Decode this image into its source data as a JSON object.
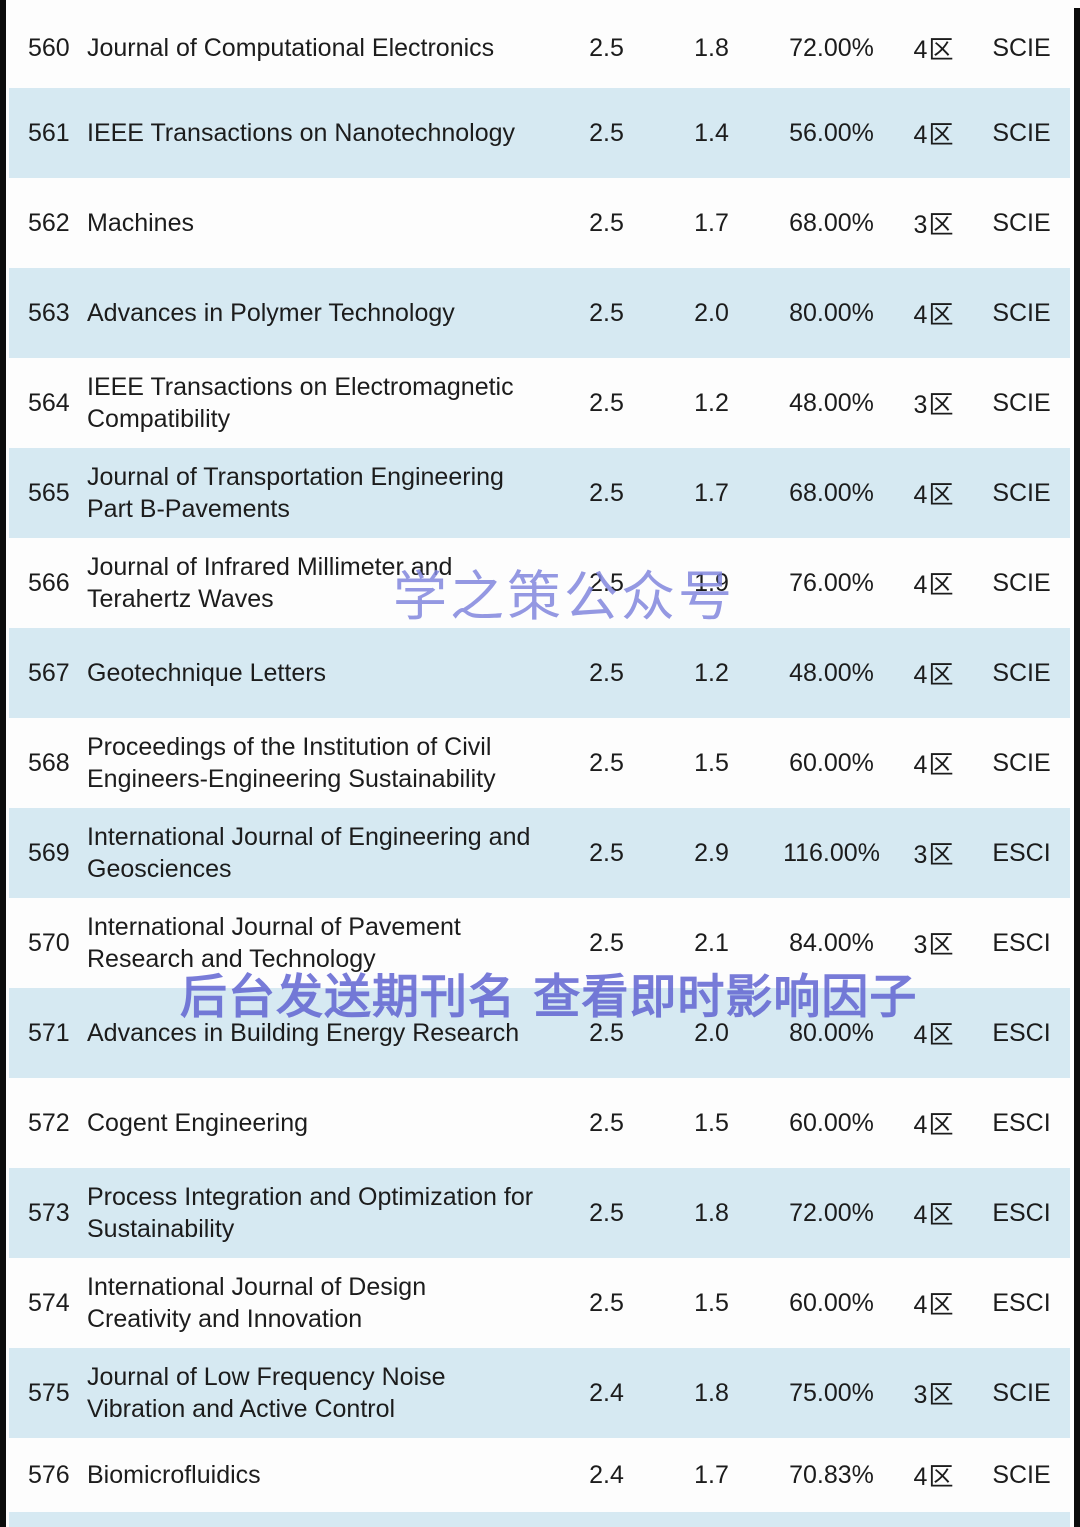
{
  "page": {
    "background": "#fdfdfd",
    "row_alt_color": "#d6e9f2",
    "border_color": "#0c0c0c",
    "text_color": "#1c1c1c"
  },
  "watermarks": {
    "top": {
      "text": "学之策公众号",
      "color": "#8287de"
    },
    "bottom": {
      "text": "后台发送期刊名 查看即时影响因子",
      "color": "#6165d2"
    }
  },
  "table": {
    "rows": [
      {
        "num": "560",
        "name": "Journal of Computational Electronics",
        "v1": "2.5",
        "v2": "1.8",
        "pct": "72.00%",
        "zone": "4区",
        "idx": "SCIE"
      },
      {
        "num": "561",
        "name": "IEEE Transactions on Nanotechnology",
        "v1": "2.5",
        "v2": "1.4",
        "pct": "56.00%",
        "zone": "4区",
        "idx": "SCIE"
      },
      {
        "num": "562",
        "name": "Machines",
        "v1": "2.5",
        "v2": "1.7",
        "pct": "68.00%",
        "zone": "3区",
        "idx": "SCIE"
      },
      {
        "num": "563",
        "name": "Advances in Polymer Technology",
        "v1": "2.5",
        "v2": "2.0",
        "pct": "80.00%",
        "zone": "4区",
        "idx": "SCIE"
      },
      {
        "num": "564",
        "name": "IEEE Transactions on Electromagnetic\nCompatibility",
        "v1": "2.5",
        "v2": "1.2",
        "pct": "48.00%",
        "zone": "3区",
        "idx": "SCIE"
      },
      {
        "num": "565",
        "name": "Journal of Transportation Engineering\nPart B-Pavements",
        "v1": "2.5",
        "v2": "1.7",
        "pct": "68.00%",
        "zone": "4区",
        "idx": "SCIE"
      },
      {
        "num": "566",
        "name": "Journal of Infrared Millimeter and\nTerahertz Waves",
        "v1": "2.5",
        "v2": "1.9",
        "pct": "76.00%",
        "zone": "4区",
        "idx": "SCIE"
      },
      {
        "num": "567",
        "name": "Geotechnique Letters",
        "v1": "2.5",
        "v2": "1.2",
        "pct": "48.00%",
        "zone": "4区",
        "idx": "SCIE"
      },
      {
        "num": "568",
        "name": "Proceedings of the Institution of Civil\nEngineers-Engineering Sustainability",
        "v1": "2.5",
        "v2": "1.5",
        "pct": "60.00%",
        "zone": "4区",
        "idx": "SCIE"
      },
      {
        "num": "569",
        "name": "International Journal of Engineering and\nGeosciences",
        "v1": "2.5",
        "v2": "2.9",
        "pct": "116.00%",
        "zone": "3区",
        "idx": "ESCI"
      },
      {
        "num": "570",
        "name": "International Journal of Pavement\nResearch and Technology",
        "v1": "2.5",
        "v2": "2.1",
        "pct": "84.00%",
        "zone": "3区",
        "idx": "ESCI"
      },
      {
        "num": "571",
        "name": "Advances in Building Energy Research",
        "v1": "2.5",
        "v2": "2.0",
        "pct": "80.00%",
        "zone": "4区",
        "idx": "ESCI"
      },
      {
        "num": "572",
        "name": "Cogent Engineering",
        "v1": "2.5",
        "v2": "1.5",
        "pct": "60.00%",
        "zone": "4区",
        "idx": "ESCI"
      },
      {
        "num": "573",
        "name": "Process Integration and Optimization for\nSustainability",
        "v1": "2.5",
        "v2": "1.8",
        "pct": "72.00%",
        "zone": "4区",
        "idx": "ESCI"
      },
      {
        "num": "574",
        "name": "International Journal of Design\nCreativity and Innovation",
        "v1": "2.5",
        "v2": "1.5",
        "pct": "60.00%",
        "zone": "4区",
        "idx": "ESCI"
      },
      {
        "num": "575",
        "name": "Journal of Low Frequency Noise\nVibration and Active Control",
        "v1": "2.4",
        "v2": "1.8",
        "pct": "75.00%",
        "zone": "3区",
        "idx": "SCIE"
      },
      {
        "num": "576",
        "name": "Biomicrofluidics",
        "v1": "2.4",
        "v2": "1.7",
        "pct": "70.83%",
        "zone": "4区",
        "idx": "SCIE"
      }
    ]
  }
}
